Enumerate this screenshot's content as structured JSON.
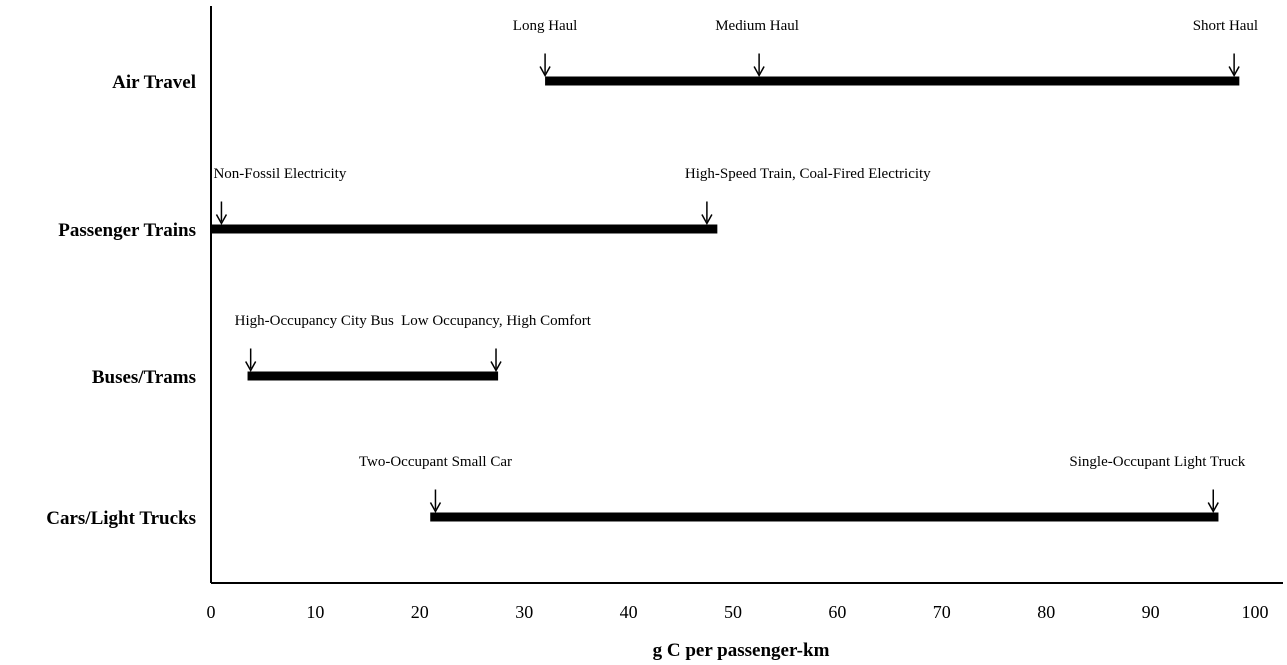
{
  "chart_data": {
    "type": "range-bar",
    "title": "",
    "xlabel": "g C per passenger-km",
    "ylabel": "",
    "xlim": [
      0,
      100
    ],
    "xticks": [
      0,
      10,
      20,
      30,
      40,
      50,
      60,
      70,
      80,
      90,
      100
    ],
    "grid": false,
    "legend": "none",
    "categories": [
      "Air Travel",
      "Passenger Trains",
      "Buses/Trams",
      "Cars/Light Trucks"
    ],
    "ranges": [
      {
        "category": "Air Travel",
        "min": 32,
        "max": 98.5,
        "annotations": [
          {
            "label": "Long Haul",
            "x": 32
          },
          {
            "label": "Medium Haul",
            "x": 52.5
          },
          {
            "label": "Short Haul",
            "x": 98
          }
        ]
      },
      {
        "category": "Passenger Trains",
        "min": 0,
        "max": 48.5,
        "annotations": [
          {
            "label": "Non-Fossil Electricity",
            "x": 1
          },
          {
            "label": "High-Speed Train, Coal-Fired Electricity",
            "x": 47.5
          }
        ]
      },
      {
        "category": "Buses/Trams",
        "min": 3.5,
        "max": 27.5,
        "annotations": [
          {
            "label": "High-Occupancy City Bus",
            "x": 3.8
          },
          {
            "label": "Low Occupancy, High Comfort",
            "x": 27.3
          }
        ]
      },
      {
        "category": "Cars/Light Trucks",
        "min": 21,
        "max": 96.5,
        "annotations": [
          {
            "label": "Two-Occupant Small Car",
            "x": 21.5
          },
          {
            "label": "Single-Occupant Light Truck",
            "x": 96
          }
        ]
      }
    ]
  }
}
